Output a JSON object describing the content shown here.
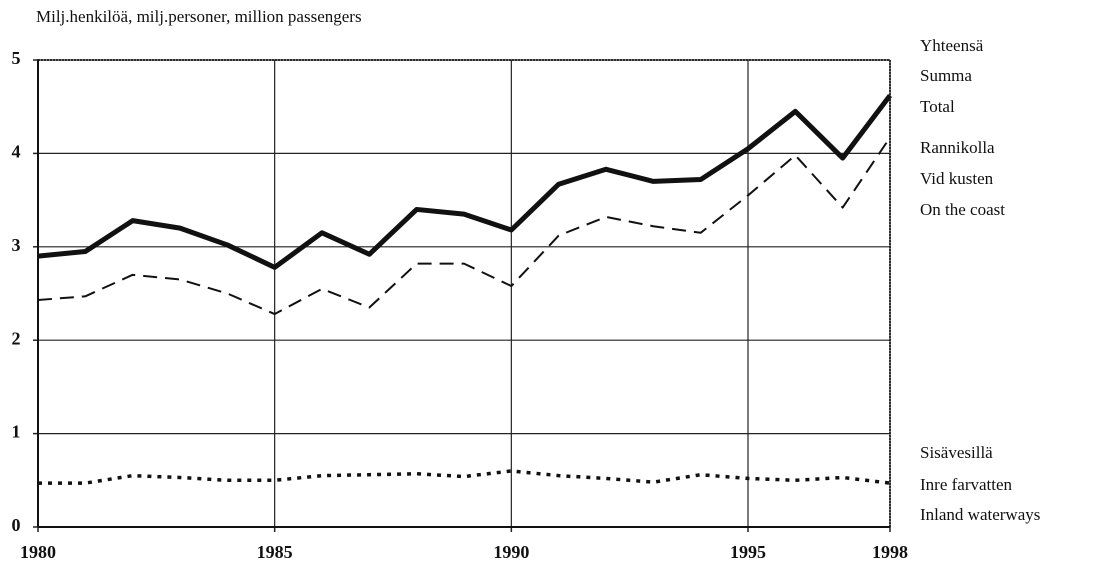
{
  "chart_data": {
    "type": "line",
    "title": "Milj.henkilöä, milj.personer, million passengers",
    "x": [
      1980,
      1981,
      1982,
      1983,
      1984,
      1985,
      1986,
      1987,
      1988,
      1989,
      1990,
      1991,
      1992,
      1993,
      1994,
      1995,
      1996,
      1997,
      1998
    ],
    "series": [
      {
        "name": [
          "Yhteensä",
          "Summa",
          "Total"
        ],
        "color": "#111111",
        "style": "solid",
        "values": [
          2.9,
          2.95,
          3.28,
          3.2,
          3.02,
          2.78,
          3.15,
          2.92,
          3.4,
          3.35,
          3.18,
          3.67,
          3.83,
          3.7,
          3.72,
          4.05,
          4.45,
          3.95,
          4.62
        ]
      },
      {
        "name": [
          "Rannikolla",
          "Vid kusten",
          "On the coast"
        ],
        "color": "#111111",
        "style": "dashed",
        "values": [
          2.43,
          2.47,
          2.7,
          2.65,
          2.5,
          2.28,
          2.55,
          2.35,
          2.82,
          2.82,
          2.58,
          3.12,
          3.32,
          3.22,
          3.15,
          3.55,
          3.98,
          3.42,
          4.17
        ]
      },
      {
        "name": [
          "Sisävesillä",
          "Inre farvatten",
          "Inland waterways"
        ],
        "color": "#111111",
        "style": "dotted",
        "values": [
          0.47,
          0.47,
          0.55,
          0.53,
          0.5,
          0.5,
          0.55,
          0.56,
          0.57,
          0.54,
          0.6,
          0.55,
          0.52,
          0.48,
          0.56,
          0.52,
          0.5,
          0.53,
          0.47
        ]
      }
    ],
    "xlim": [
      1980,
      1998
    ],
    "xticks": [
      1980,
      1985,
      1990,
      1995,
      1998
    ],
    "ylim": [
      0,
      5
    ],
    "yticks": [
      0,
      1,
      2,
      3,
      4,
      5
    ],
    "grid": true
  }
}
